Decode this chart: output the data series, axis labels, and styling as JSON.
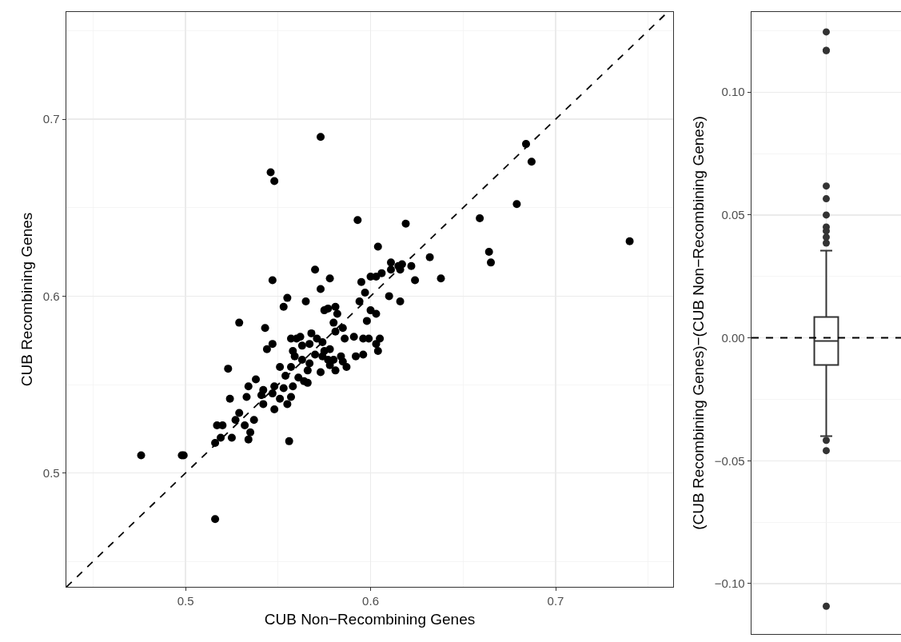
{
  "chart_data": [
    {
      "type": "scatter",
      "xlabel": "CUB Non−Recombining Genes",
      "ylabel": "CUB Recombining Genes",
      "xlim": [
        0.4356,
        0.7635
      ],
      "ylim": [
        0.4357,
        0.7606
      ],
      "xticks": [
        0.5,
        0.6,
        0.7
      ],
      "yticks": [
        0.5,
        0.6,
        0.7
      ],
      "grid": true,
      "marker": "circle",
      "series": [
        {
          "type": "scatter",
          "color": "#000000",
          "x": [
            0.573,
            0.546,
            0.548,
            0.593,
            0.604,
            0.547,
            0.57,
            0.578,
            0.573,
            0.595,
            0.597,
            0.6,
            0.603,
            0.606,
            0.611,
            0.611,
            0.615,
            0.61,
            0.555,
            0.565,
            0.684,
            0.687,
            0.679,
            0.659,
            0.74,
            0.664,
            0.665,
            0.619,
            0.632,
            0.638,
            0.624,
            0.617,
            0.616,
            0.622,
            0.616,
            0.594,
            0.6,
            0.603,
            0.598,
            0.591,
            0.596,
            0.599,
            0.605,
            0.603,
            0.604,
            0.592,
            0.596,
            0.553,
            0.529,
            0.543,
            0.547,
            0.544,
            0.523,
            0.524,
            0.538,
            0.534,
            0.533,
            0.542,
            0.541,
            0.548,
            0.547,
            0.542,
            0.548,
            0.551,
            0.555,
            0.553,
            0.557,
            0.554,
            0.551,
            0.557,
            0.558,
            0.561,
            0.564,
            0.566,
            0.566,
            0.567,
            0.559,
            0.558,
            0.563,
            0.57,
            0.574,
            0.575,
            0.578,
            0.577,
            0.58,
            0.578,
            0.573,
            0.581,
            0.584,
            0.585,
            0.587,
            0.568,
            0.571,
            0.574,
            0.563,
            0.567,
            0.557,
            0.56,
            0.562,
            0.575,
            0.581,
            0.577,
            0.582,
            0.58,
            0.581,
            0.585,
            0.586,
            0.517,
            0.52,
            0.516,
            0.519,
            0.525,
            0.527,
            0.529,
            0.532,
            0.535,
            0.534,
            0.537,
            0.556,
            0.516,
            0.476,
            0.498,
            0.499
          ],
          "values": [
            0.69,
            0.67,
            0.665,
            0.643,
            0.628,
            0.609,
            0.615,
            0.61,
            0.604,
            0.608,
            0.602,
            0.611,
            0.611,
            0.613,
            0.619,
            0.615,
            0.617,
            0.6,
            0.599,
            0.597,
            0.686,
            0.676,
            0.652,
            0.644,
            0.631,
            0.625,
            0.619,
            0.641,
            0.622,
            0.61,
            0.609,
            0.618,
            0.615,
            0.617,
            0.597,
            0.597,
            0.592,
            0.59,
            0.586,
            0.577,
            0.576,
            0.576,
            0.576,
            0.573,
            0.569,
            0.566,
            0.567,
            0.594,
            0.585,
            0.582,
            0.573,
            0.57,
            0.559,
            0.542,
            0.553,
            0.549,
            0.543,
            0.547,
            0.544,
            0.549,
            0.545,
            0.539,
            0.536,
            0.542,
            0.539,
            0.548,
            0.543,
            0.555,
            0.56,
            0.56,
            0.549,
            0.554,
            0.552,
            0.551,
            0.558,
            0.562,
            0.566,
            0.569,
            0.564,
            0.567,
            0.566,
            0.569,
            0.57,
            0.564,
            0.564,
            0.561,
            0.557,
            0.558,
            0.566,
            0.563,
            0.56,
            0.579,
            0.576,
            0.574,
            0.572,
            0.573,
            0.576,
            0.576,
            0.577,
            0.592,
            0.594,
            0.593,
            0.59,
            0.585,
            0.58,
            0.582,
            0.576,
            0.527,
            0.527,
            0.517,
            0.52,
            0.52,
            0.53,
            0.534,
            0.527,
            0.523,
            0.519,
            0.53,
            0.518,
            0.474,
            0.51,
            0.51,
            0.51
          ]
        },
        {
          "type": "line",
          "color": "#000000",
          "line_style": "dashed",
          "marker": "none",
          "x": [
            0.4357,
            0.7606
          ],
          "values": [
            0.4357,
            0.7606
          ]
        }
      ]
    },
    {
      "type": "box",
      "ylabel": "(CUB Recombining Genes)−(CUB Non−Recombining Genes)",
      "categories": [
        null
      ],
      "ylim": [
        -0.1205,
        0.1326
      ],
      "yticks": [
        {
          "value": -0.1,
          "label": "−0.10"
        },
        {
          "value": -0.05,
          "label": "−0.05"
        },
        {
          "value": 0,
          "label": "0.00"
        },
        {
          "value": 0.05,
          "label": "0.05"
        },
        {
          "value": 0.1,
          "label": "0.10"
        }
      ],
      "grid": true,
      "tick_labels": "y",
      "color": "#333333",
      "boxes": [
        {
          "low": -0.04,
          "q1": -0.011,
          "median": -0.0013,
          "q3": 0.0085,
          "high": 0.0355,
          "outliers": [
            0.1245,
            0.117,
            0.1169,
            0.0618,
            0.0566,
            0.05,
            0.0451,
            0.0435,
            0.041,
            0.0386,
            -0.0417,
            -0.0459,
            -0.1092
          ]
        }
      ],
      "ref_lines": [
        {
          "axis": "y",
          "value": 0,
          "line_style": "dashed",
          "color": "#000000"
        }
      ]
    }
  ]
}
